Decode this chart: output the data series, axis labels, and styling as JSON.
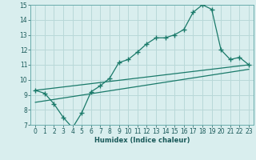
{
  "xlabel": "Humidex (Indice chaleur)",
  "xlim": [
    -0.5,
    23.5
  ],
  "ylim": [
    7,
    15
  ],
  "yticks": [
    7,
    8,
    9,
    10,
    11,
    12,
    13,
    14,
    15
  ],
  "xticks": [
    0,
    1,
    2,
    3,
    4,
    5,
    6,
    7,
    8,
    9,
    10,
    11,
    12,
    13,
    14,
    15,
    16,
    17,
    18,
    19,
    20,
    21,
    22,
    23
  ],
  "bg_color": "#d9eeee",
  "grid_color": "#b8d8d8",
  "line_color": "#1a7a6a",
  "line1_x": [
    0,
    1,
    2,
    3,
    4,
    5,
    6,
    7,
    8,
    9,
    10,
    11,
    12,
    13,
    14,
    15,
    16,
    17,
    18,
    19,
    20,
    21,
    22,
    23
  ],
  "line1_y": [
    9.3,
    9.1,
    8.4,
    7.5,
    6.8,
    7.8,
    9.2,
    9.6,
    10.1,
    11.15,
    11.35,
    11.85,
    12.4,
    12.8,
    12.8,
    13.0,
    13.35,
    14.5,
    15.0,
    14.7,
    12.0,
    11.35,
    11.5,
    11.0
  ],
  "line2_x": [
    0,
    23
  ],
  "line2_y": [
    9.3,
    11.0
  ],
  "line3_x": [
    0,
    23
  ],
  "line3_y": [
    8.5,
    10.7
  ]
}
